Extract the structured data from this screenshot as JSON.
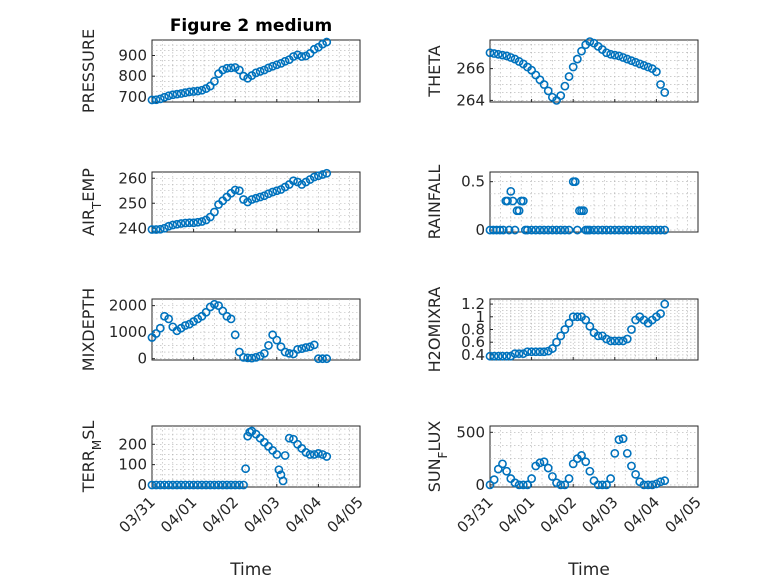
{
  "title": "Figure 2 medium",
  "marker_color": "#0072BD",
  "x_tick_labels": [
    "03/31",
    "04/01",
    "04/02",
    "04/03",
    "04/04",
    "04/05"
  ],
  "x_label": "Time",
  "chart_data": [
    {
      "type": "scatter",
      "ylabel_main": "PRESSURE",
      "ylabel_sub": "",
      "yticks": [
        700,
        800,
        900
      ],
      "ylim": [
        675,
        975
      ],
      "xlim": [
        0,
        5
      ],
      "grid": true,
      "x": [
        0,
        0.1,
        0.2,
        0.3,
        0.4,
        0.5,
        0.6,
        0.7,
        0.8,
        0.9,
        1.0,
        1.1,
        1.2,
        1.3,
        1.4,
        1.5,
        1.6,
        1.7,
        1.8,
        1.9,
        2.0,
        2.1,
        2.2,
        2.3,
        2.4,
        2.5,
        2.6,
        2.7,
        2.8,
        2.9,
        3.0,
        3.1,
        3.2,
        3.3,
        3.4,
        3.5,
        3.6,
        3.7,
        3.8,
        3.9,
        4.0,
        4.1,
        4.2
      ],
      "y": [
        685,
        686,
        690,
        698,
        705,
        710,
        713,
        716,
        720,
        724,
        726,
        728,
        732,
        740,
        752,
        775,
        812,
        830,
        838,
        840,
        842,
        830,
        800,
        790,
        803,
        816,
        823,
        830,
        840,
        848,
        855,
        862,
        872,
        880,
        895,
        903,
        895,
        898,
        910,
        930,
        940,
        955,
        965
      ]
    },
    {
      "type": "scatter",
      "ylabel_main": "THETA",
      "ylabel_sub": "",
      "yticks": [
        264,
        266
      ],
      "ylim": [
        263.9,
        267.8
      ],
      "xlim": [
        0,
        5
      ],
      "grid": true,
      "x": [
        0,
        0.1,
        0.2,
        0.3,
        0.4,
        0.5,
        0.6,
        0.7,
        0.8,
        0.9,
        1.0,
        1.1,
        1.2,
        1.3,
        1.4,
        1.5,
        1.6,
        1.7,
        1.8,
        1.9,
        2.0,
        2.1,
        2.2,
        2.3,
        2.4,
        2.5,
        2.6,
        2.7,
        2.8,
        2.9,
        3.0,
        3.1,
        3.2,
        3.3,
        3.4,
        3.5,
        3.6,
        3.7,
        3.8,
        3.9,
        4.0,
        4.1,
        4.2
      ],
      "y": [
        267.0,
        266.95,
        266.9,
        266.85,
        266.8,
        266.7,
        266.6,
        266.45,
        266.3,
        266.1,
        265.9,
        265.6,
        265.3,
        265.0,
        264.6,
        264.2,
        264.0,
        264.3,
        264.9,
        265.5,
        266.1,
        266.6,
        267.1,
        267.5,
        267.7,
        267.6,
        267.4,
        267.2,
        267.0,
        266.9,
        266.85,
        266.8,
        266.7,
        266.6,
        266.5,
        266.4,
        266.3,
        266.2,
        266.1,
        266.0,
        265.8,
        265.0,
        264.5
      ]
    },
    {
      "type": "scatter",
      "ylabel_main": "AIR",
      "ylabel_sub": "T",
      "ylabel_tail": "EMP",
      "yticks": [
        240,
        250,
        260
      ],
      "ylim": [
        238.5,
        262.5
      ],
      "xlim": [
        0,
        5
      ],
      "grid": true,
      "x": [
        0,
        0.1,
        0.2,
        0.3,
        0.4,
        0.5,
        0.6,
        0.7,
        0.8,
        0.9,
        1.0,
        1.1,
        1.2,
        1.3,
        1.4,
        1.5,
        1.6,
        1.7,
        1.8,
        1.9,
        2.0,
        2.1,
        2.2,
        2.3,
        2.4,
        2.5,
        2.6,
        2.7,
        2.8,
        2.9,
        3.0,
        3.1,
        3.2,
        3.3,
        3.4,
        3.5,
        3.6,
        3.7,
        3.8,
        3.9,
        4.0,
        4.1,
        4.2
      ],
      "y": [
        239.5,
        239.5,
        239.6,
        240.0,
        240.8,
        241.3,
        241.6,
        241.9,
        242.1,
        242.2,
        242.2,
        242.4,
        242.7,
        243.3,
        244.5,
        246.5,
        249.5,
        251.0,
        252.5,
        254.0,
        255.3,
        255.0,
        251.5,
        250.5,
        251.5,
        252.0,
        252.5,
        253.0,
        253.8,
        254.5,
        255.0,
        255.5,
        256.5,
        257.5,
        259.0,
        258.5,
        257.5,
        258.5,
        259.5,
        260.5,
        261.0,
        261.5,
        262.0
      ]
    },
    {
      "type": "scatter",
      "ylabel_main": "RAINFALL",
      "ylabel_sub": "",
      "yticks": [
        0,
        0.5
      ],
      "ylim": [
        -0.02,
        0.6
      ],
      "xlim": [
        0,
        5
      ],
      "grid": true,
      "x": [
        0,
        0.08,
        0.16,
        0.24,
        0.32,
        0.38,
        0.42,
        0.46,
        0.5,
        0.55,
        0.6,
        0.65,
        0.7,
        0.75,
        0.8,
        0.85,
        0.9,
        1.0,
        1.1,
        1.2,
        1.3,
        1.4,
        1.5,
        1.6,
        1.7,
        1.8,
        1.9,
        2.0,
        2.05,
        2.1,
        2.15,
        2.2,
        2.25,
        2.3,
        2.35,
        2.4,
        2.5,
        2.6,
        2.7,
        2.8,
        2.9,
        3.0,
        3.1,
        3.2,
        3.3,
        3.4,
        3.5,
        3.6,
        3.7,
        3.8,
        3.9,
        4.0,
        4.1,
        4.2
      ],
      "y": [
        0,
        0,
        0,
        0,
        0,
        0.3,
        0.3,
        0,
        0.4,
        0.3,
        0,
        0.2,
        0.2,
        0.3,
        0.3,
        0,
        0,
        0,
        0,
        0,
        0,
        0,
        0,
        0,
        0,
        0,
        0,
        0.5,
        0.5,
        0,
        0.2,
        0.2,
        0.2,
        0,
        0,
        0,
        0,
        0,
        0,
        0,
        0,
        0,
        0,
        0,
        0,
        0,
        0,
        0,
        0,
        0,
        0,
        0,
        0,
        0
      ]
    },
    {
      "type": "scatter",
      "ylabel_main": "MIXDEPTH",
      "ylabel_sub": "",
      "yticks": [
        0,
        1000,
        2000
      ],
      "ylim": [
        -50,
        2250
      ],
      "xlim": [
        0,
        5
      ],
      "grid": true,
      "x": [
        0,
        0.1,
        0.2,
        0.3,
        0.4,
        0.5,
        0.6,
        0.7,
        0.8,
        0.9,
        1.0,
        1.1,
        1.2,
        1.3,
        1.4,
        1.5,
        1.6,
        1.7,
        1.8,
        1.9,
        2.0,
        2.1,
        2.2,
        2.3,
        2.4,
        2.5,
        2.6,
        2.7,
        2.8,
        2.9,
        3.0,
        3.1,
        3.2,
        3.3,
        3.4,
        3.5,
        3.6,
        3.7,
        3.8,
        3.9,
        4.0,
        4.1,
        4.2
      ],
      "y": [
        800,
        950,
        1150,
        1600,
        1500,
        1200,
        1050,
        1150,
        1250,
        1300,
        1400,
        1500,
        1600,
        1750,
        1950,
        2050,
        2000,
        1800,
        1600,
        1500,
        900,
        250,
        50,
        30,
        20,
        50,
        100,
        200,
        500,
        900,
        700,
        450,
        250,
        200,
        180,
        350,
        380,
        420,
        450,
        520,
        0,
        0,
        0
      ]
    },
    {
      "type": "scatter",
      "ylabel_main": "H2OMIXRA",
      "ylabel_sub": "",
      "yticks": [
        0.4,
        0.6,
        0.8,
        1,
        1.2
      ],
      "ylim": [
        0.32,
        1.28
      ],
      "xlim": [
        0,
        5
      ],
      "grid": true,
      "x": [
        0,
        0.1,
        0.2,
        0.3,
        0.4,
        0.5,
        0.6,
        0.7,
        0.8,
        0.9,
        1.0,
        1.1,
        1.2,
        1.3,
        1.4,
        1.5,
        1.6,
        1.7,
        1.8,
        1.9,
        2.0,
        2.1,
        2.2,
        2.3,
        2.4,
        2.5,
        2.6,
        2.7,
        2.8,
        2.9,
        3.0,
        3.1,
        3.2,
        3.3,
        3.4,
        3.5,
        3.6,
        3.7,
        3.8,
        3.9,
        4.0,
        4.1,
        4.2
      ],
      "y": [
        0.38,
        0.38,
        0.38,
        0.38,
        0.38,
        0.38,
        0.42,
        0.42,
        0.42,
        0.45,
        0.45,
        0.45,
        0.45,
        0.45,
        0.46,
        0.5,
        0.6,
        0.7,
        0.8,
        0.9,
        1.0,
        1.0,
        1.0,
        0.95,
        0.85,
        0.75,
        0.7,
        0.7,
        0.65,
        0.62,
        0.62,
        0.62,
        0.62,
        0.65,
        0.8,
        0.95,
        1.0,
        0.95,
        0.9,
        0.95,
        1.0,
        1.05,
        1.2
      ]
    },
    {
      "type": "scatter",
      "ylabel_main": "TERR",
      "ylabel_sub": "M",
      "ylabel_tail": "SL",
      "yticks": [
        0,
        100,
        200
      ],
      "ylim": [
        -10,
        290
      ],
      "xlim": [
        0,
        5
      ],
      "grid": true,
      "x": [
        0,
        0.1,
        0.2,
        0.3,
        0.4,
        0.5,
        0.6,
        0.7,
        0.8,
        0.9,
        1.0,
        1.1,
        1.2,
        1.3,
        1.4,
        1.5,
        1.6,
        1.7,
        1.8,
        1.9,
        2.0,
        2.1,
        2.2,
        2.25,
        2.3,
        2.35,
        2.4,
        2.5,
        2.6,
        2.7,
        2.8,
        2.9,
        3.0,
        3.05,
        3.1,
        3.15,
        3.2,
        3.3,
        3.4,
        3.5,
        3.6,
        3.7,
        3.8,
        3.9,
        4.0,
        4.1,
        4.2
      ],
      "y": [
        0,
        0,
        0,
        0,
        0,
        0,
        0,
        0,
        0,
        0,
        0,
        0,
        0,
        0,
        0,
        0,
        0,
        0,
        0,
        0,
        0,
        0,
        0,
        80,
        240,
        260,
        265,
        250,
        230,
        210,
        190,
        170,
        150,
        75,
        50,
        20,
        145,
        230,
        225,
        200,
        180,
        160,
        150,
        150,
        155,
        150,
        140
      ]
    },
    {
      "type": "scatter",
      "ylabel_main": "SUN",
      "ylabel_sub": "F",
      "ylabel_tail": "LUX",
      "yticks": [
        0,
        500
      ],
      "ylim": [
        -20,
        560
      ],
      "xlim": [
        0,
        5
      ],
      "grid": true,
      "x": [
        0,
        0.1,
        0.2,
        0.3,
        0.4,
        0.5,
        0.6,
        0.7,
        0.8,
        0.9,
        1.0,
        1.1,
        1.2,
        1.3,
        1.4,
        1.5,
        1.6,
        1.7,
        1.8,
        1.9,
        2.0,
        2.1,
        2.2,
        2.3,
        2.4,
        2.5,
        2.6,
        2.7,
        2.8,
        2.9,
        3.0,
        3.1,
        3.2,
        3.3,
        3.4,
        3.5,
        3.6,
        3.7,
        3.8,
        3.9,
        4.0,
        4.1,
        4.2
      ],
      "y": [
        0,
        50,
        150,
        200,
        130,
        60,
        20,
        0,
        0,
        0,
        60,
        180,
        210,
        220,
        160,
        80,
        20,
        0,
        0,
        60,
        200,
        250,
        280,
        220,
        130,
        40,
        0,
        0,
        0,
        60,
        300,
        430,
        440,
        300,
        180,
        100,
        30,
        0,
        0,
        0,
        10,
        30,
        40
      ]
    }
  ]
}
